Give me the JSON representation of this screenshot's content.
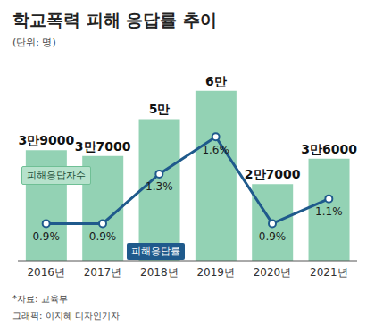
{
  "chart_data": {
    "type": "bar",
    "title": "학교폭력 피해 응답률 추이",
    "subtitle": "(단위: 명)",
    "categories": [
      "2016년",
      "2017년",
      "2018년",
      "2019년",
      "2020년",
      "2021년"
    ],
    "series": [
      {
        "name": "피해응답자수",
        "type": "bar",
        "color": "#93d2b4",
        "values": [
          39000,
          37000,
          50000,
          60000,
          27000,
          36000
        ],
        "value_labels": [
          "3만9000",
          "3만7000",
          "5만",
          "6만",
          "2만7000",
          "3만6000"
        ]
      },
      {
        "name": "피해응답률",
        "type": "line",
        "color": "#1f5a8c",
        "marker": "circle",
        "axis": "y2",
        "values": [
          0.9,
          0.9,
          1.3,
          1.6,
          0.9,
          1.1
        ],
        "value_labels": [
          "0.9%",
          "0.9%",
          "1.3%",
          "1.6%",
          "0.9%",
          "1.1%"
        ]
      }
    ],
    "ylim": [
      0,
      70000
    ],
    "y2lim": [
      0.6,
      2.2
    ],
    "tick_labels": "x",
    "data_labels": true,
    "grid": false,
    "source": "*자료: 교육부",
    "credit": "그래픽: 이지혜 디자인기자"
  }
}
